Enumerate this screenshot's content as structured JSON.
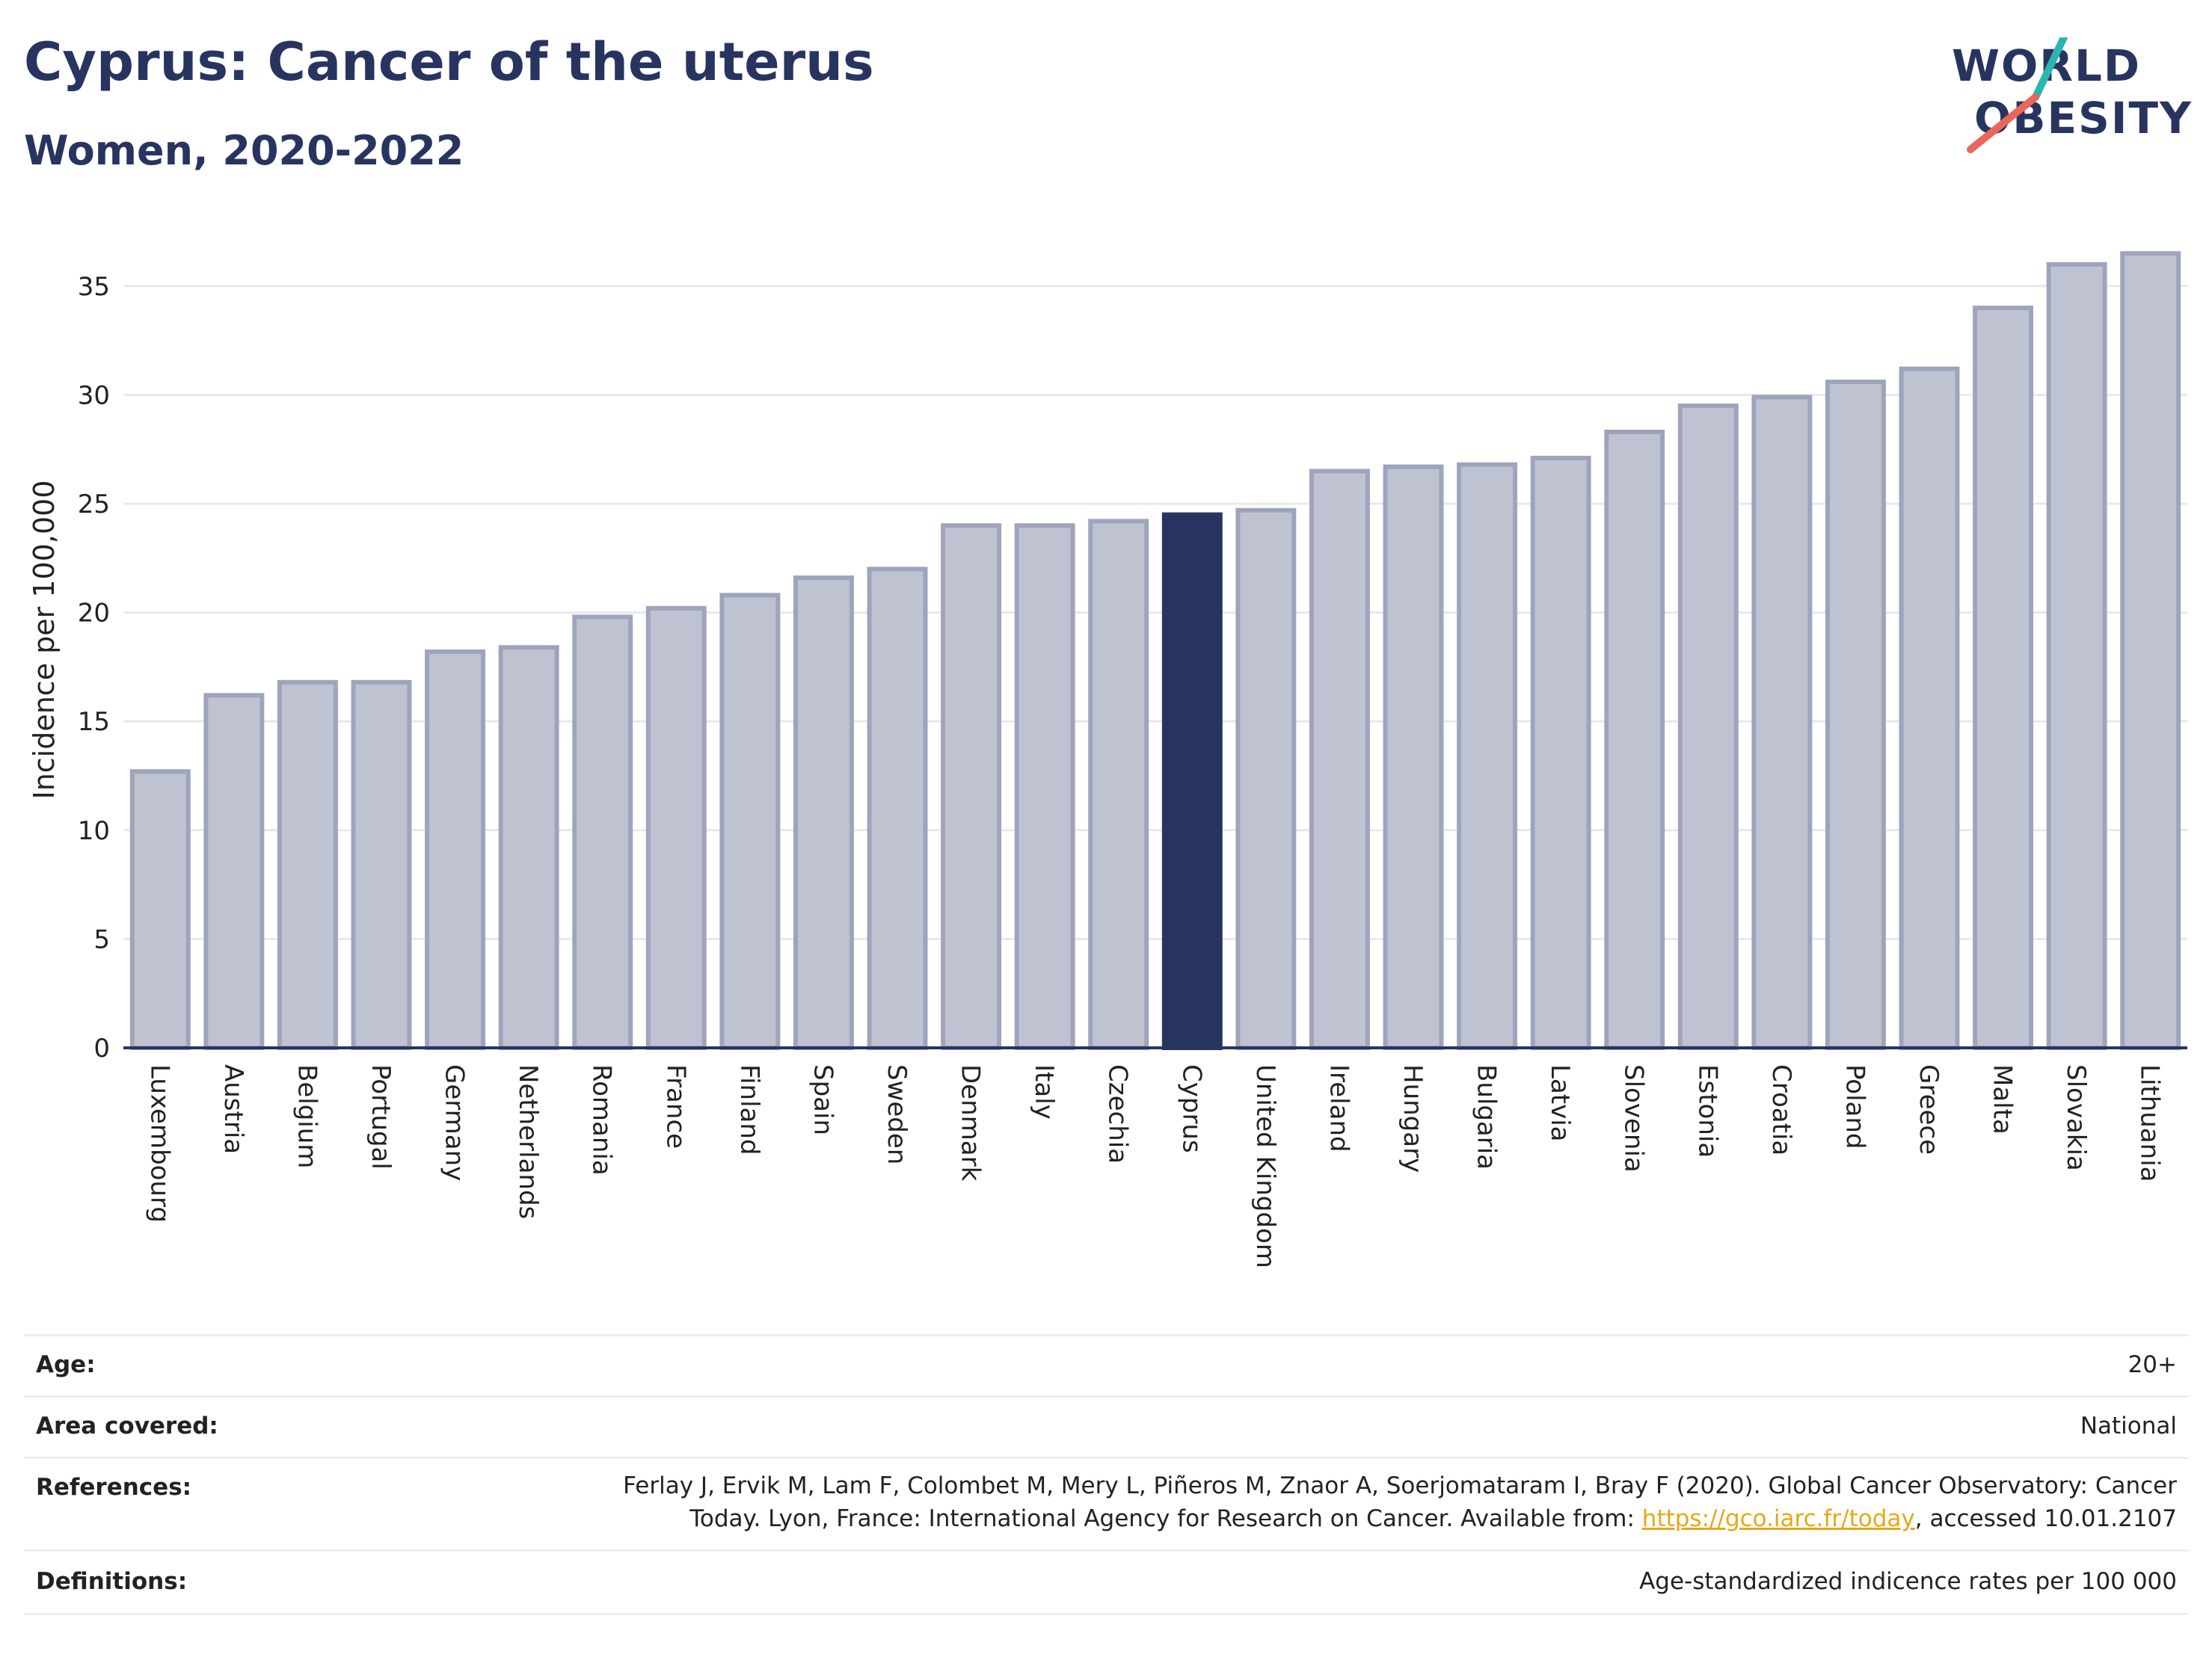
{
  "header": {
    "title": "Cyprus: Cancer of the uterus",
    "subtitle": "Women, 2020-2022"
  },
  "logo": {
    "line1": "WORLD",
    "line2": "OBESITY",
    "accent_colors": [
      "#2bb5b0",
      "#e8675a"
    ]
  },
  "colors": {
    "highlight": "#283460",
    "bar": "#bfc3d1",
    "bar_stroke": "#9ea4bc",
    "grid": "#e8e8ee"
  },
  "chart_data": {
    "type": "bar",
    "ylabel": "Incidence per 100,000",
    "ylim": [
      0,
      37.5
    ],
    "yticks": [
      0,
      5,
      10,
      15,
      20,
      25,
      30,
      35
    ],
    "highlight": "Cyprus",
    "categories": [
      "Luxembourg",
      "Austria",
      "Belgium",
      "Portugal",
      "Germany",
      "Netherlands",
      "Romania",
      "France",
      "Finland",
      "Spain",
      "Sweden",
      "Denmark",
      "Italy",
      "Czechia",
      "Cyprus",
      "United Kingdom",
      "Ireland",
      "Hungary",
      "Bulgaria",
      "Latvia",
      "Slovenia",
      "Estonia",
      "Croatia",
      "Poland",
      "Greece",
      "Malta",
      "Slovakia",
      "Lithuania"
    ],
    "values": [
      12.7,
      16.2,
      16.8,
      16.8,
      18.2,
      18.4,
      19.8,
      20.2,
      20.8,
      21.6,
      22.0,
      24.0,
      24.0,
      24.2,
      24.5,
      24.7,
      26.5,
      26.7,
      26.8,
      27.1,
      28.3,
      29.5,
      29.9,
      30.6,
      31.2,
      34.0,
      36.0,
      36.5
    ],
    "grid": true
  },
  "meta": {
    "age_label": "Age:",
    "age_value": "20+",
    "area_label": "Area covered:",
    "area_value": "National",
    "references_label": "References:",
    "references_line1": "Ferlay J, Ervik M, Lam F, Colombet M, Mery L, Piñeros M, Znaor A, Soerjomataram I, Bray F (2020). Global Cancer Observatory: Cancer",
    "references_line2_pre": "Today. Lyon, France: International Agency for Research on Cancer. Available from: ",
    "references_link": "https://gco.iarc.fr/today",
    "references_line2_post": ", accessed 10.01.2107",
    "definitions_label": "Definitions:",
    "definitions_value": "Age-standardized indicence rates per 100 000"
  }
}
